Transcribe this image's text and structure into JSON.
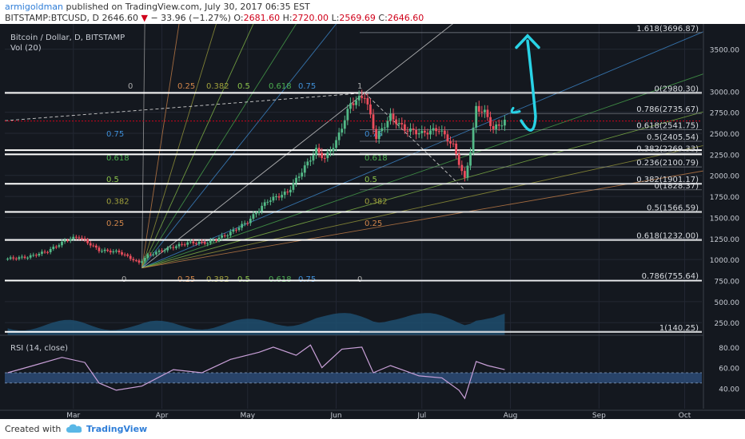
{
  "header": {
    "author": "armigoldman",
    "published_text": "published on TradingView.com, July 30, 2017 06:35 EST",
    "symbol": "BITSTAMP:BTCUSD, D",
    "last_price": "2646.60",
    "change": "− 33.96 (−1.27%)",
    "o_label": "O:",
    "o_value": "2681.60",
    "h_label": "H:",
    "h_value": "2720.00",
    "l_label": "L:",
    "l_value": "2569.69",
    "c_label": "C:",
    "c_value": "2646.60"
  },
  "legend": {
    "title": "Bitcoin / Dollar, D, BITSTAMP",
    "volume": "Vol (20)",
    "rsi": "RSI (14, close)"
  },
  "footer": {
    "created_with": "Created with",
    "brand": "TradingView"
  },
  "colors": {
    "background": "#14181f",
    "up": "#53b987",
    "down": "#eb4d5c",
    "rsi": "#c9a0d8",
    "rsi_band": "#2d4f7c",
    "volume": "#1d4e6e",
    "price_line": "#d0021b",
    "cyan_annotation": "#29d3e6"
  },
  "chart_data": [
    {
      "type": "candlestick",
      "title": "Bitcoin / Dollar, D, BITSTAMP",
      "y_ticks": [
        250,
        500,
        750,
        1000,
        1250,
        1500,
        1750,
        2000,
        2250,
        2500,
        2750,
        3000,
        3500
      ],
      "y_tick_labels": [
        "250.00",
        "500.00",
        "750.00",
        "1000.00",
        "1250.00",
        "1500.00",
        "1750.00",
        "2000.00",
        "2250.00",
        "2500.00",
        "2750.00",
        "3000.00",
        "3500.00"
      ],
      "ylim": [
        100,
        3800
      ],
      "x_ticks": [
        "Mar",
        "Apr",
        "May",
        "Jun",
        "Jul",
        "Aug",
        "Sep",
        "Oct"
      ],
      "xlim_dates": [
        "2017-02-05",
        "2017-10-07"
      ],
      "last_price_label": "2646.60",
      "close_series": [
        {
          "date": "2017-02-06",
          "close": 1010
        },
        {
          "date": "2017-02-13",
          "close": 1030
        },
        {
          "date": "2017-02-20",
          "close": 1100
        },
        {
          "date": "2017-02-27",
          "close": 1240
        },
        {
          "date": "2017-03-03",
          "close": 1270
        },
        {
          "date": "2017-03-10",
          "close": 1110
        },
        {
          "date": "2017-03-17",
          "close": 1090
        },
        {
          "date": "2017-03-24",
          "close": 960
        },
        {
          "date": "2017-03-27",
          "close": 1050
        },
        {
          "date": "2017-04-03",
          "close": 1130
        },
        {
          "date": "2017-04-10",
          "close": 1200
        },
        {
          "date": "2017-04-17",
          "close": 1200
        },
        {
          "date": "2017-04-24",
          "close": 1300
        },
        {
          "date": "2017-05-01",
          "close": 1450
        },
        {
          "date": "2017-05-08",
          "close": 1700
        },
        {
          "date": "2017-05-15",
          "close": 1800
        },
        {
          "date": "2017-05-20",
          "close": 2050
        },
        {
          "date": "2017-05-25",
          "close": 2300
        },
        {
          "date": "2017-05-28",
          "close": 2200
        },
        {
          "date": "2017-06-01",
          "close": 2400
        },
        {
          "date": "2017-06-06",
          "close": 2850
        },
        {
          "date": "2017-06-11",
          "close": 2950
        },
        {
          "date": "2017-06-15",
          "close": 2450
        },
        {
          "date": "2017-06-20",
          "close": 2700
        },
        {
          "date": "2017-06-25",
          "close": 2550
        },
        {
          "date": "2017-07-01",
          "close": 2500
        },
        {
          "date": "2017-07-07",
          "close": 2550
        },
        {
          "date": "2017-07-12",
          "close": 2350
        },
        {
          "date": "2017-07-16",
          "close": 1950
        },
        {
          "date": "2017-07-18",
          "close": 2300
        },
        {
          "date": "2017-07-20",
          "close": 2800
        },
        {
          "date": "2017-07-23",
          "close": 2750
        },
        {
          "date": "2017-07-26",
          "close": 2550
        },
        {
          "date": "2017-07-30",
          "close": 2646.6
        }
      ],
      "fib_retracement_right": [
        {
          "label": "1.618(3696.87)",
          "value": 3696.87
        },
        {
          "label": "0(2980.30)",
          "value": 2980.3
        },
        {
          "label": "0.786(2735.67)",
          "value": 2735.67
        },
        {
          "label": "0.618(2541.75)",
          "value": 2541.75
        },
        {
          "label": "0.5(2405.54)",
          "value": 2405.54
        },
        {
          "label": "0.382(2269.33)",
          "value": 2269.33
        },
        {
          "label": "0.236(2100.79)",
          "value": 2100.79
        },
        {
          "label": "0.382(1901.17)",
          "value": 1901.17
        },
        {
          "label": "0(1828.37)",
          "value": 1828.37
        },
        {
          "label": "0.5(1566.59)",
          "value": 1566.59
        },
        {
          "label": "0.618(1232.00)",
          "value": 1232.0
        },
        {
          "label": "0.786(755.64)",
          "value": 755.64
        },
        {
          "label": "1(140.25)",
          "value": 140.25
        }
      ],
      "white_levels": [
        2980,
        2300,
        2250,
        1900,
        1566,
        1232,
        750,
        140
      ],
      "fan_labels_left": [
        {
          "label": "0.75",
          "value": 2460,
          "color": "#3f8fd8"
        },
        {
          "label": "0.618",
          "value": 2180,
          "color": "#4caf50"
        },
        {
          "label": "0.5",
          "value": 1920,
          "color": "#8bc34a"
        },
        {
          "label": "0.382",
          "value": 1660,
          "color": "#a0a03c"
        },
        {
          "label": "0.25",
          "value": 1400,
          "color": "#d2864a"
        }
      ],
      "fan_labels_right": [
        {
          "label": "0.75",
          "value": 2460,
          "color": "#3f8fd8"
        },
        {
          "label": "0.618",
          "value": 2180,
          "color": "#4caf50"
        },
        {
          "label": "0.5",
          "value": 1920,
          "color": "#8bc34a"
        },
        {
          "label": "0.382",
          "value": 1660,
          "color": "#a0a03c"
        },
        {
          "label": "0.25",
          "value": 1400,
          "color": "#d2864a"
        }
      ],
      "fan_labels_top": [
        {
          "label": "0",
          "color": "#aaaaaa"
        },
        {
          "label": "0.25",
          "color": "#d2864a"
        },
        {
          "label": "0.382",
          "color": "#a0a03c"
        },
        {
          "label": "0.5",
          "color": "#8bc34a"
        },
        {
          "label": "0.618",
          "color": "#4caf50"
        },
        {
          "label": "0.75",
          "color": "#3f8fd8"
        },
        {
          "label": "1",
          "color": "#aaaaaa"
        }
      ],
      "fan_labels_bottom": [
        {
          "label": "0",
          "color": "#aaaaaa"
        },
        {
          "label": "0.25",
          "color": "#d2864a"
        },
        {
          "label": "0.382",
          "color": "#a0a03c"
        },
        {
          "label": "0.5",
          "color": "#8bc34a"
        },
        {
          "label": "0.618",
          "color": "#4caf50"
        },
        {
          "label": "0.75",
          "color": "#3f8fd8"
        },
        {
          "label": "0",
          "color": "#aaaaaa"
        }
      ]
    },
    {
      "type": "line",
      "title": "RSI (14, close)",
      "y_ticks": [
        40,
        60,
        80
      ],
      "y_tick_labels": [
        "40.00",
        "60.00",
        "80.00"
      ],
      "ylim": [
        20,
        90
      ],
      "band": [
        45,
        55
      ],
      "rsi_series": [
        {
          "date": "2017-02-06",
          "value": 55
        },
        {
          "date": "2017-02-15",
          "value": 62
        },
        {
          "date": "2017-02-25",
          "value": 70
        },
        {
          "date": "2017-03-05",
          "value": 65
        },
        {
          "date": "2017-03-10",
          "value": 45
        },
        {
          "date": "2017-03-16",
          "value": 38
        },
        {
          "date": "2017-03-25",
          "value": 42
        },
        {
          "date": "2017-04-05",
          "value": 58
        },
        {
          "date": "2017-04-15",
          "value": 55
        },
        {
          "date": "2017-04-25",
          "value": 68
        },
        {
          "date": "2017-05-05",
          "value": 75
        },
        {
          "date": "2017-05-10",
          "value": 80
        },
        {
          "date": "2017-05-18",
          "value": 72
        },
        {
          "date": "2017-05-23",
          "value": 82
        },
        {
          "date": "2017-05-27",
          "value": 60
        },
        {
          "date": "2017-06-03",
          "value": 78
        },
        {
          "date": "2017-06-10",
          "value": 80
        },
        {
          "date": "2017-06-14",
          "value": 55
        },
        {
          "date": "2017-06-20",
          "value": 62
        },
        {
          "date": "2017-06-30",
          "value": 52
        },
        {
          "date": "2017-07-08",
          "value": 50
        },
        {
          "date": "2017-07-14",
          "value": 38
        },
        {
          "date": "2017-07-16",
          "value": 30
        },
        {
          "date": "2017-07-18",
          "value": 48
        },
        {
          "date": "2017-07-20",
          "value": 66
        },
        {
          "date": "2017-07-24",
          "value": 62
        },
        {
          "date": "2017-07-30",
          "value": 58
        }
      ]
    }
  ]
}
